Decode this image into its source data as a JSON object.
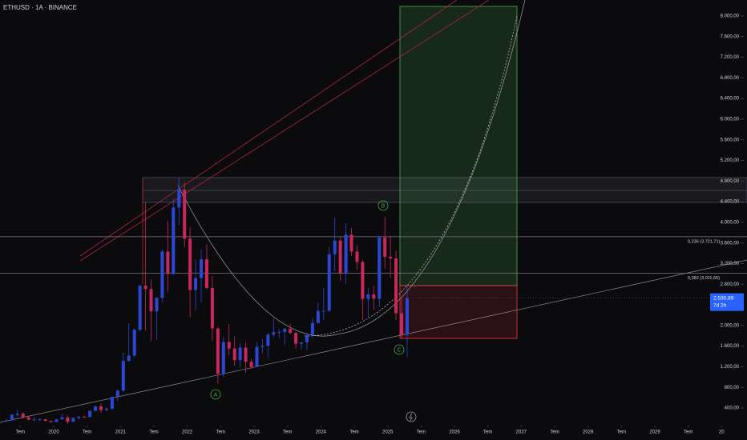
{
  "chart_data": {
    "type": "candlestick",
    "title": "ETHUSD · 1A · BINANCE",
    "up_color": "#2c47d4",
    "down_color": "#c8285a",
    "open": [
      141,
      162,
      268,
      291,
      218,
      172,
      180,
      182,
      152,
      130,
      180,
      218,
      133,
      206,
      231,
      226,
      345,
      434,
      360,
      386,
      616,
      737,
      1314,
      1417,
      1918,
      2773,
      2707,
      2275,
      2536,
      3433,
      3000,
      4288,
      4630,
      3683,
      2688,
      2919,
      3282,
      2728,
      1942,
      1067,
      1679,
      1553,
      1328,
      1572,
      1295,
      1196,
      1585,
      1605,
      1822,
      1870,
      1874,
      1934,
      1857,
      1645,
      1671,
      1815,
      2049,
      2281,
      2283,
      3383,
      3645,
      3014,
      3762,
      3433,
      3232,
      2513,
      2602,
      2518,
      3704,
      3332,
      3300,
      2237,
      1822
    ],
    "high": [
      184,
      287,
      364,
      318,
      238,
      225,
      198,
      192,
      153,
      186,
      288,
      253,
      227,
      245,
      253,
      347,
      446,
      489,
      420,
      622,
      755,
      1475,
      2041,
      1943,
      2797,
      4380,
      2890,
      2550,
      3470,
      4030,
      4460,
      4868,
      4780,
      3900,
      3280,
      3480,
      3580,
      2960,
      1975,
      1780,
      2030,
      1790,
      1660,
      1680,
      1350,
      1680,
      1740,
      1860,
      2140,
      1930,
      1950,
      2030,
      1870,
      1680,
      1860,
      2140,
      2450,
      2720,
      3520,
      4090,
      3730,
      3980,
      3890,
      3560,
      3270,
      2730,
      2770,
      3740,
      4110,
      3740,
      3440,
      2550,
      2740
    ],
    "low": [
      135,
      158,
      230,
      190,
      164,
      152,
      154,
      137,
      117,
      127,
      178,
      90,
      129,
      176,
      216,
      223,
      335,
      308,
      335,
      374,
      535,
      714,
      1300,
      1385,
      1885,
      1900,
      1700,
      1720,
      2450,
      2650,
      2970,
      3950,
      3520,
      2160,
      2300,
      2450,
      2700,
      1700,
      880,
      1000,
      1420,
      1220,
      1190,
      1080,
      1160,
      1190,
      1460,
      1370,
      1780,
      1760,
      1620,
      1830,
      1550,
      1530,
      1520,
      1760,
      2040,
      2100,
      2270,
      3050,
      2860,
      2810,
      3350,
      3080,
      2110,
      2150,
      2310,
      2360,
      3100,
      2920,
      2100,
      1760,
      1385
    ],
    "close": [
      162,
      268,
      291,
      218,
      172,
      180,
      182,
      152,
      130,
      180,
      218,
      133,
      206,
      231,
      226,
      345,
      434,
      360,
      386,
      616,
      737,
      1314,
      1417,
      1918,
      2773,
      2707,
      2275,
      2536,
      3433,
      3000,
      4288,
      4630,
      3683,
      2688,
      2919,
      3282,
      2728,
      1942,
      1067,
      1679,
      1553,
      1328,
      1572,
      1295,
      1196,
      1585,
      1605,
      1822,
      1870,
      1874,
      1934,
      1857,
      1645,
      1671,
      1815,
      2049,
      2281,
      2283,
      3383,
      3645,
      3014,
      3762,
      3433,
      3232,
      2513,
      2602,
      2518,
      3704,
      3332,
      3300,
      2237,
      1822,
      2531
    ],
    "xlim": [
      2019.196,
      2030.38
    ],
    "xticks": [
      {
        "value": 2019.5,
        "label": "Tem"
      },
      2020,
      {
        "value": 2020.5,
        "label": "Tem"
      },
      2021,
      {
        "value": 2021.5,
        "label": "Tem"
      },
      2022,
      {
        "value": 2022.5,
        "label": "Tem"
      },
      2023,
      {
        "value": 2023.5,
        "label": "Tem"
      },
      2024,
      {
        "value": 2024.5,
        "label": "Tem"
      },
      2025,
      {
        "value": 2025.5,
        "label": "Tem"
      },
      2026,
      {
        "value": 2026.5,
        "label": "Tem"
      },
      2027,
      {
        "value": 2027.5,
        "label": "Tem"
      },
      2028,
      {
        "value": 2028.5,
        "label": "Tem"
      },
      2029,
      {
        "value": 2029.5,
        "label": "Tem"
      },
      {
        "value": 2030,
        "label": "20"
      }
    ],
    "ylim": [
      59,
      8310
    ],
    "yticks": [
      {
        "value": 400,
        "label": "400,00"
      },
      {
        "value": 800,
        "label": "800,00"
      },
      {
        "value": 1200,
        "label": "1.200,00"
      },
      {
        "value": 1600,
        "label": "1.600,00"
      },
      {
        "value": 2000,
        "label": "2.000,00"
      },
      {
        "value": 2400,
        "label": "2.400,00"
      },
      {
        "value": 2800,
        "label": "2.800,00"
      },
      {
        "value": 3200,
        "label": "3.200,00"
      },
      {
        "value": 3600,
        "label": "3.600,00"
      },
      {
        "value": 4000,
        "label": "4.000,00"
      },
      {
        "value": 4400,
        "label": "4.400,00"
      },
      {
        "value": 4800,
        "label": "4.800,00"
      },
      {
        "value": 5200,
        "label": "5.200,00"
      },
      {
        "value": 5600,
        "label": "5.600,00"
      },
      {
        "value": 6000,
        "label": "6.000,00"
      },
      {
        "value": 6400,
        "label": "6.400,00"
      },
      {
        "value": 6800,
        "label": "6.800,00"
      },
      {
        "value": 7200,
        "label": "7.200,00"
      },
      {
        "value": 7600,
        "label": "7.600,00"
      },
      {
        "value": 8000,
        "label": "8.000,00"
      }
    ],
    "fib_levels": [
      {
        "value": 3721.71,
        "label": "0,236 (3.721,71)"
      },
      {
        "value": 3011.66,
        "label": "0,382 (3.011,66)"
      }
    ],
    "last_price": {
      "value": 2530.89,
      "label": "2.530,89"
    },
    "countdown": "7d 2h",
    "annotations": [
      "A",
      "B",
      "C"
    ]
  }
}
